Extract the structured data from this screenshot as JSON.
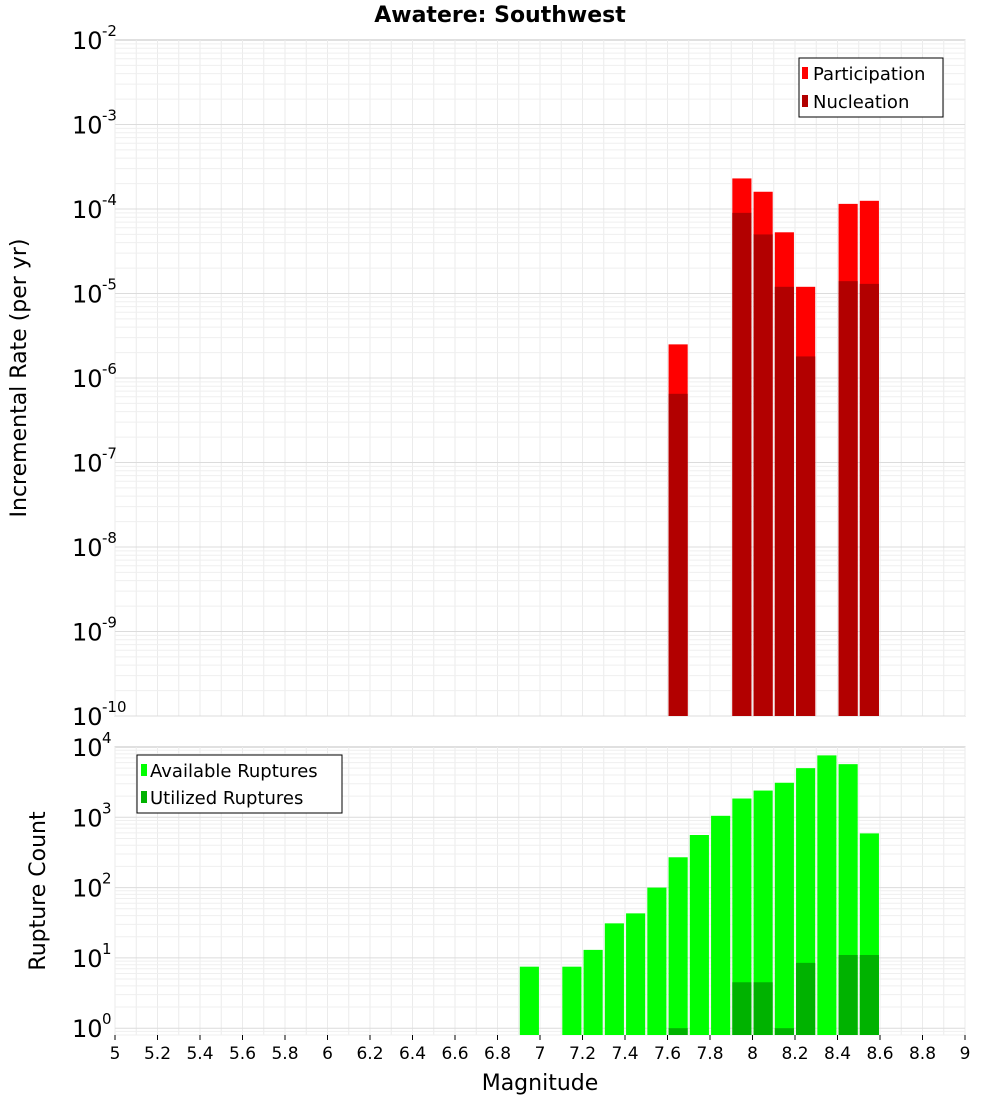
{
  "title": "Awatere: Southwest",
  "xlabel": "Magnitude",
  "chart_data": [
    {
      "type": "bar",
      "name": "rate-chart",
      "yscale": "log",
      "ylabel": "Incremental Rate (per yr)",
      "xlim": [
        5,
        9
      ],
      "ylim": [
        1e-10,
        0.01
      ],
      "ytick_exponents": [
        "-10",
        "-9",
        "-8",
        "-7",
        "-6",
        "-5",
        "-4",
        "-3",
        "-2"
      ],
      "legend_position": "top-right",
      "series": [
        {
          "name": "Participation",
          "color": "#ff0000",
          "x": [
            7.65,
            7.95,
            8.05,
            8.15,
            8.25,
            8.45,
            8.55
          ],
          "values": [
            2.5e-06,
            0.00023,
            0.00016,
            5.3e-05,
            1.2e-05,
            0.000115,
            0.000125
          ]
        },
        {
          "name": "Nucleation",
          "color": "#b20000",
          "x": [
            7.65,
            7.95,
            8.05,
            8.15,
            8.25,
            8.45,
            8.55
          ],
          "values": [
            6.5e-07,
            9e-05,
            5e-05,
            1.2e-05,
            1.8e-06,
            1.4e-05,
            1.3e-05
          ]
        }
      ]
    },
    {
      "type": "bar",
      "name": "count-chart",
      "yscale": "log",
      "ylabel": "Rupture Count",
      "xlim": [
        5,
        9
      ],
      "ylim": [
        0.8,
        10000
      ],
      "ytick_exponents": [
        "0",
        "1",
        "2",
        "3",
        "4"
      ],
      "legend_position": "top-left",
      "x_ticks": [
        "5",
        "5.2",
        "5.4",
        "5.6",
        "5.8",
        "6",
        "6.2",
        "6.4",
        "6.6",
        "6.8",
        "7",
        "7.2",
        "7.4",
        "7.6",
        "7.8",
        "8",
        "8.2",
        "8.4",
        "8.6",
        "8.8",
        "9"
      ],
      "series": [
        {
          "name": "Available Ruptures",
          "color": "#00ff00",
          "x": [
            6.95,
            7.15,
            7.25,
            7.35,
            7.45,
            7.55,
            7.65,
            7.75,
            7.85,
            7.95,
            8.05,
            8.15,
            8.25,
            8.35,
            8.45,
            8.55
          ],
          "values": [
            7.5,
            7.5,
            13,
            31,
            43,
            100,
            270,
            560,
            1050,
            1850,
            2400,
            3100,
            5000,
            7600,
            5700,
            590
          ]
        },
        {
          "name": "Utilized Ruptures",
          "color": "#00b200",
          "x": [
            7.65,
            7.95,
            8.05,
            8.15,
            8.25,
            8.45,
            8.55
          ],
          "values": [
            1,
            4.5,
            4.5,
            1,
            8.5,
            11,
            11
          ]
        }
      ]
    }
  ]
}
